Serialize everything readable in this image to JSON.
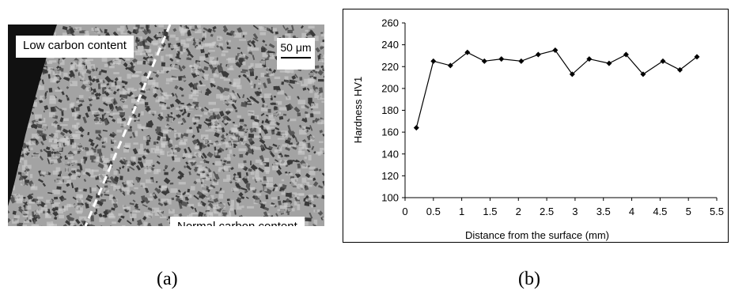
{
  "panel_a": {
    "low_carbon_label": "Low carbon content",
    "normal_carbon_label": "Normal carbon content",
    "scale_bar_label": "50 μm",
    "caption": "(a)"
  },
  "panel_b": {
    "caption": "(b)"
  },
  "chart_data": {
    "type": "line",
    "title": "",
    "xlabel": "Distance from the surface (mm)",
    "ylabel": "Hardness HV1",
    "xlim": [
      0,
      5.5
    ],
    "ylim": [
      100,
      260
    ],
    "xticks": [
      0,
      0.5,
      1,
      1.5,
      2,
      2.5,
      3,
      3.5,
      4,
      4.5,
      5,
      5.5
    ],
    "yticks": [
      100,
      120,
      140,
      160,
      180,
      200,
      220,
      240,
      260
    ],
    "xtick_labels": [
      "0",
      "0.5",
      "1",
      "1.5",
      "2",
      "2.5",
      "3",
      "3.5",
      "4",
      "4.5",
      "5",
      "5.5"
    ],
    "ytick_labels": [
      "100",
      "120",
      "140",
      "160",
      "180",
      "200",
      "220",
      "240",
      "260"
    ],
    "grid": false,
    "marker": "diamond",
    "series": [
      {
        "x": [
          0.2,
          0.5,
          0.8,
          1.1,
          1.4,
          1.7,
          2.05,
          2.35,
          2.65,
          2.95,
          3.25,
          3.6,
          3.9,
          4.2,
          4.55,
          4.85,
          5.15
        ],
        "y": [
          164,
          225,
          221,
          233,
          225,
          227,
          225,
          231,
          235,
          213,
          227,
          223,
          231,
          213,
          225,
          217,
          229
        ]
      }
    ]
  }
}
